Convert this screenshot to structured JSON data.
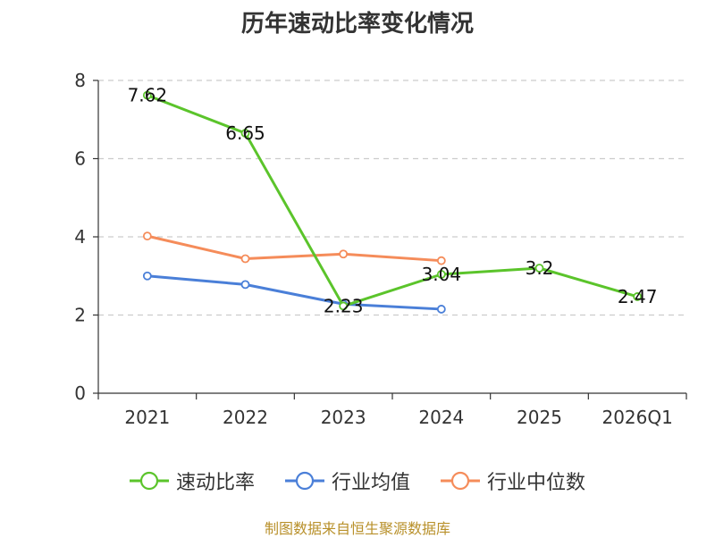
{
  "chart_data": {
    "type": "line",
    "title": "历年速动比率变化情况",
    "categories": [
      "2021",
      "2022",
      "2023",
      "2024",
      "2025",
      "2026Q1"
    ],
    "ylim": [
      0,
      8
    ],
    "yticks": [
      0,
      2,
      4,
      6,
      8
    ],
    "grid": true,
    "legend_position": "bottom",
    "series": [
      {
        "name": "速动比率",
        "color": "#5bc42b",
        "values": [
          7.62,
          6.65,
          2.23,
          3.04,
          3.2,
          2.47
        ],
        "labels": [
          "7.62",
          "6.65",
          "2.23",
          "3.04",
          "3.2",
          "2.47"
        ]
      },
      {
        "name": "行业均值",
        "color": "#4a7fd8",
        "values": [
          3.0,
          2.78,
          2.28,
          2.15,
          null,
          null
        ]
      },
      {
        "name": "行业中位数",
        "color": "#f58c5a",
        "values": [
          4.02,
          3.44,
          3.56,
          3.39,
          null,
          null
        ]
      }
    ]
  },
  "source": "制图数据来自恒生聚源数据库"
}
